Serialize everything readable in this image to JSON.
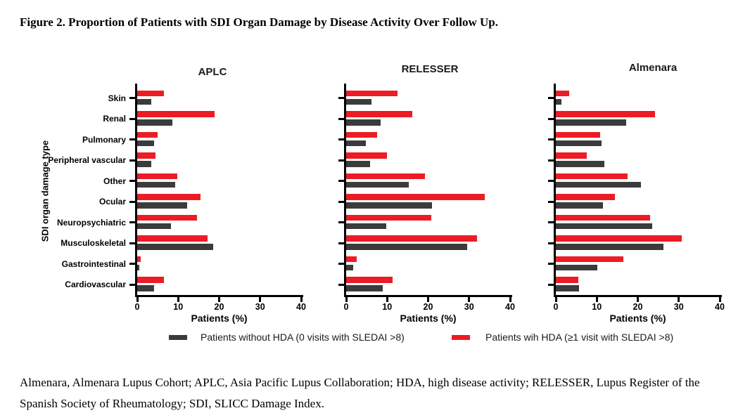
{
  "figure_title": "Figure 2. Proportion of Patients with SDI Organ Damage by Disease Activity Over Follow Up.",
  "footnote": "Almenara, Almenara Lupus Cohort; APLC, Asia Pacific Lupus Collaboration; HDA, high disease activity; RELESSER, Lupus Register of the Spanish Society of Rheumatology; SDI, SLICC Damage Index.",
  "colors": {
    "without_hda": "#3B3B3B",
    "with_hda": "#EC1C24",
    "axis": "#000000"
  },
  "legend": {
    "without_hda": {
      "label": "Patients without HDA (0 visits with SLEDAI >8)",
      "color": "#3B3B3B"
    },
    "with_hda": {
      "label": "Patients wih HDA (≥1 visit with SLEDAI >8)",
      "color": "#EC1C24"
    }
  },
  "chart_data": [
    {
      "type": "bar",
      "orientation": "horizontal",
      "title": "APLC",
      "xlabel": "Patients (%)",
      "ylabel": "SDI organ damage type",
      "xlim": [
        0,
        40
      ],
      "xticks": [
        0,
        10,
        20,
        30,
        40
      ],
      "grid": false,
      "categories": [
        "Skin",
        "Renal",
        "Pulmonary",
        "Peripheral vascular",
        "Other",
        "Ocular",
        "Neuropsychiatric",
        "Musculoskeletal",
        "Gastrointestinal",
        "Cardiovascular"
      ],
      "series": [
        {
          "name": "Patients without HDA (0 visits with SLEDAI >8)",
          "color": "#3B3B3B",
          "values": [
            3.4,
            8.5,
            4.1,
            3.4,
            9.2,
            12.2,
            8.2,
            18.5,
            0.6,
            4.2
          ]
        },
        {
          "name": "Patients wih HDA (≥1 visit with SLEDAI >8)",
          "color": "#EC1C24",
          "values": [
            6.6,
            18.8,
            5.0,
            4.4,
            9.7,
            15.4,
            14.6,
            17.1,
            0.8,
            6.6
          ]
        }
      ]
    },
    {
      "type": "bar",
      "orientation": "horizontal",
      "title": "RELESSER",
      "xlabel": "Patients (%)",
      "ylabel": "",
      "xlim": [
        0,
        40
      ],
      "xticks": [
        0,
        10,
        20,
        30,
        40
      ],
      "grid": false,
      "categories": [
        "Skin",
        "Renal",
        "Pulmonary",
        "Peripheral vascular",
        "Other",
        "Ocular",
        "Neuropsychiatric",
        "Musculoskeletal",
        "Gastrointestinal",
        "Cardiovascular"
      ],
      "series": [
        {
          "name": "Patients without HDA (0 visits with SLEDAI >8)",
          "color": "#3B3B3B",
          "values": [
            6.1,
            8.4,
            4.8,
            5.8,
            15.2,
            21.0,
            9.7,
            29.5,
            1.7,
            9.0
          ]
        },
        {
          "name": "Patients wih HDA (≥1 visit with SLEDAI >8)",
          "color": "#EC1C24",
          "values": [
            12.5,
            16.2,
            7.5,
            10.0,
            19.2,
            33.8,
            20.8,
            32.0,
            2.6,
            11.3
          ]
        }
      ]
    },
    {
      "type": "bar",
      "orientation": "horizontal",
      "title": "Almenara",
      "xlabel": "Patients (%)",
      "ylabel": "",
      "xlim": [
        0,
        40
      ],
      "xticks": [
        0,
        10,
        20,
        30,
        40
      ],
      "grid": false,
      "categories": [
        "Skin",
        "Renal",
        "Pulmonary",
        "Peripheral vascular",
        "Other",
        "Ocular",
        "Neuropsychiatric",
        "Musculoskeletal",
        "Gastrointestinal",
        "Cardiovascular"
      ],
      "series": [
        {
          "name": "Patients without HDA (0 visits with SLEDAI >8)",
          "color": "#3B3B3B",
          "values": [
            1.3,
            17.2,
            11.1,
            11.8,
            20.7,
            11.5,
            23.5,
            26.2,
            10.1,
            5.6
          ]
        },
        {
          "name": "Patients wih HDA (≥1 visit with SLEDAI >8)",
          "color": "#EC1C24",
          "values": [
            3.3,
            24.2,
            10.9,
            7.5,
            17.5,
            14.4,
            23.0,
            30.7,
            16.4,
            5.5
          ]
        }
      ]
    }
  ]
}
